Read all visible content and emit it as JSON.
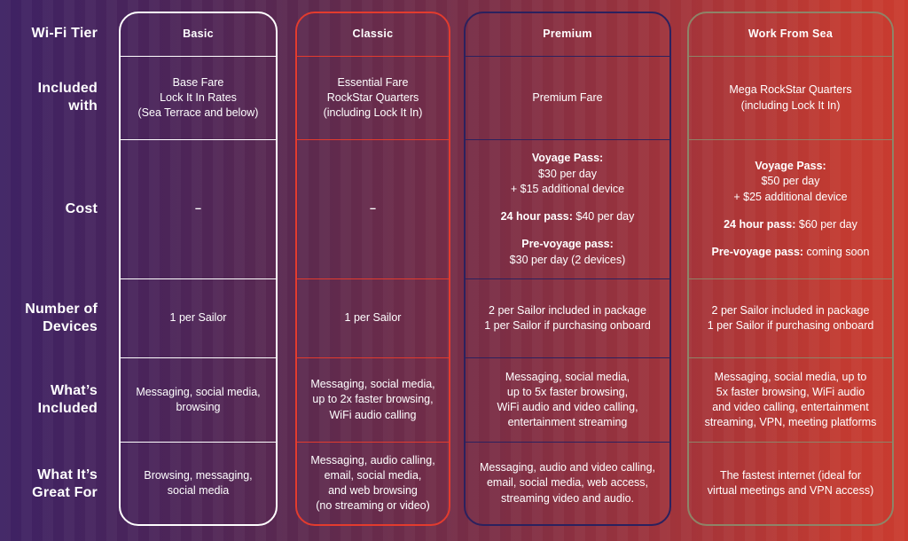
{
  "palette": {
    "bg_left": "#3e2264",
    "bg_right": "#ca3b2f",
    "text": "#ffffff",
    "border_basic": "#ffffff",
    "border_classic": "#e33b2e",
    "border_premium": "#2b215e",
    "border_wfs": "#8e8468"
  },
  "labels": {
    "tier": "Wi-Fi Tier",
    "included_with": "Included\nwith",
    "cost": "Cost",
    "devices": "Number of\nDevices",
    "whats_included": "What’s\nIncluded",
    "great_for": "What It’s\nGreat For"
  },
  "columns": [
    {
      "name": "Basic",
      "border_color": "#ffffff",
      "included_with": "Base Fare\nLock It In Rates\n(Sea Terrace and below)",
      "cost_lines": [
        [
          {
            "t": "–",
            "b": true
          }
        ]
      ],
      "devices": "1 per Sailor",
      "whats_included": "Messaging, social media,\nbrowsing",
      "great_for": "Browsing, messaging,\nsocial media"
    },
    {
      "name": "Classic",
      "border_color": "#e33b2e",
      "included_with": "Essential Fare\nRockStar Quarters\n(including Lock It In)",
      "cost_lines": [
        [
          {
            "t": "–",
            "b": true
          }
        ]
      ],
      "devices": "1 per Sailor",
      "whats_included": "Messaging, social media,\nup to 2x faster browsing,\nWiFi audio calling",
      "great_for": "Messaging, audio calling,\nemail, social media,\nand web browsing\n(no streaming or video)"
    },
    {
      "name": "Premium",
      "border_color": "#2b215e",
      "included_with": "Premium Fare",
      "cost_lines": [
        [
          {
            "t": "Voyage Pass:",
            "b": true
          }
        ],
        [
          {
            "t": "$30 per day"
          }
        ],
        [
          {
            "t": "+ $15 additional device"
          }
        ],
        [],
        [
          {
            "t": "24 hour pass:",
            "b": true
          },
          {
            "t": " $40 per day"
          }
        ],
        [],
        [
          {
            "t": "Pre-voyage pass:",
            "b": true
          }
        ],
        [
          {
            "t": "$30 per day (2 devices)"
          }
        ]
      ],
      "devices": "2 per Sailor included in package\n1 per Sailor if purchasing onboard",
      "whats_included": "Messaging, social media,\nup to 5x faster browsing,\nWiFi audio and video calling,\nentertainment streaming",
      "great_for": "Messaging, audio and video calling,\nemail, social media, web access,\nstreaming video and audio."
    },
    {
      "name": "Work From Sea",
      "border_color": "#8e8468",
      "included_with": "Mega RockStar Quarters\n(including Lock It In)",
      "cost_lines": [
        [
          {
            "t": "Voyage Pass:",
            "b": true
          }
        ],
        [
          {
            "t": "$50 per day"
          }
        ],
        [
          {
            "t": "+ $25 additional device"
          }
        ],
        [],
        [
          {
            "t": "24 hour pass:",
            "b": true
          },
          {
            "t": " $60 per day"
          }
        ],
        [],
        [
          {
            "t": "Pre-voyage pass:",
            "b": true
          },
          {
            "t": " coming soon"
          }
        ]
      ],
      "devices": "2 per Sailor included in package\n1 per Sailor if purchasing onboard",
      "whats_included": "Messaging, social media, up to\n5x faster browsing, WiFi audio\nand video calling, entertainment\nstreaming, VPN, meeting platforms",
      "great_for": "The fastest internet (ideal for\nvirtual meetings and VPN access)"
    }
  ],
  "chart_data": {
    "type": "table",
    "title": "Wi-Fi Tier comparison",
    "columns": [
      "Wi-Fi Tier",
      "Basic",
      "Classic",
      "Premium",
      "Work From Sea"
    ],
    "rows": [
      [
        "Included with",
        "Base Fare Lock It In Rates (Sea Terrace and below)",
        "Essential Fare RockStar Quarters (including Lock It In)",
        "Premium Fare",
        "Mega RockStar Quarters (including Lock It In)"
      ],
      [
        "Cost",
        "–",
        "–",
        "Voyage Pass: $30 per day + $15 additional device; 24 hour pass: $40 per day; Pre-voyage pass: $30 per day (2 devices)",
        "Voyage Pass: $50 per day + $25 additional device; 24 hour pass: $60 per day; Pre-voyage pass: coming soon"
      ],
      [
        "Number of Devices",
        "1 per Sailor",
        "1 per Sailor",
        "2 per Sailor included in package, 1 per Sailor if purchasing onboard",
        "2 per Sailor included in package, 1 per Sailor if purchasing onboard"
      ],
      [
        "What’s Included",
        "Messaging, social media, browsing",
        "Messaging, social media, up to 2x faster browsing, WiFi audio calling",
        "Messaging, social media, up to 5x faster browsing, WiFi audio and video calling, entertainment streaming",
        "Messaging, social media, up to 5x faster browsing, WiFi audio and video calling, entertainment streaming, VPN, meeting platforms"
      ],
      [
        "What It’s Great For",
        "Browsing, messaging, social media",
        "Messaging, audio calling, email, social media, and web browsing (no streaming or video)",
        "Messaging, audio and video calling, email, social media, web access, streaming video and audio.",
        "The fastest internet (ideal for virtual meetings and VPN access)"
      ]
    ]
  }
}
